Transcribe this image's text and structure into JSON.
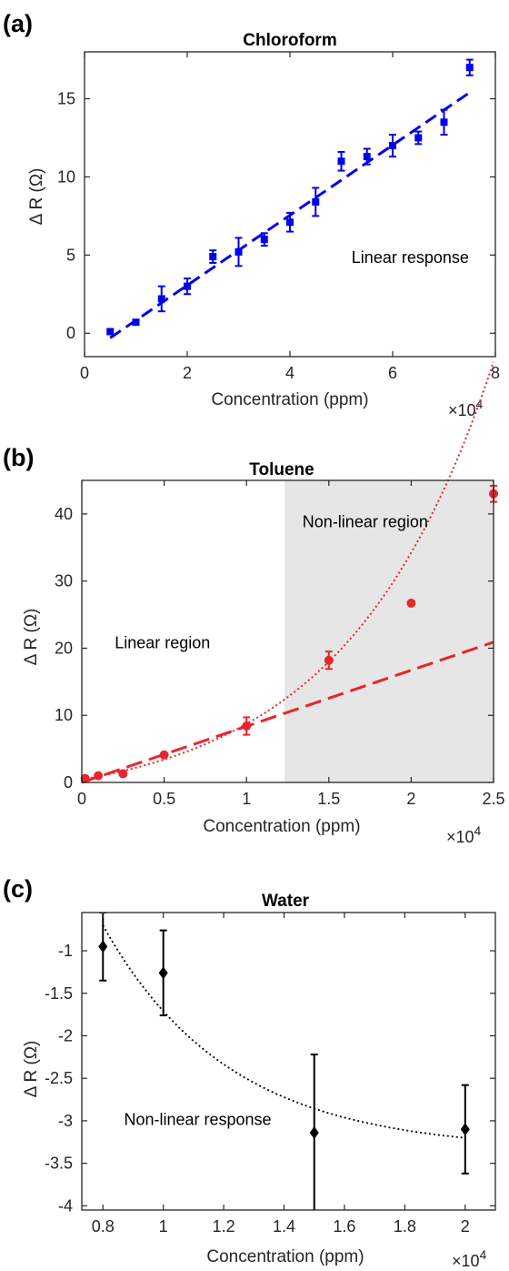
{
  "chart_data": [
    {
      "panel_label": "(a)",
      "type": "scatter",
      "title": "Chloroform",
      "xlabel": "Concentration (ppm)",
      "ylabel": "Δ R (Ω)",
      "x_multiplier": "×10",
      "x_multiplier_exp": "4",
      "xlim": [
        0,
        8
      ],
      "ylim": [
        -1.5,
        18
      ],
      "xticks": [
        0,
        2,
        4,
        6,
        8
      ],
      "xtick_labels": [
        "0",
        "2",
        "4",
        "6",
        "8"
      ],
      "yticks": [
        0,
        5,
        10,
        15
      ],
      "ytick_labels": [
        "0",
        "5",
        "10",
        "15"
      ],
      "color": "#0000ee",
      "marker": "square",
      "points": [
        {
          "x": 0.5,
          "y": 0.1,
          "err": 0
        },
        {
          "x": 1.0,
          "y": 0.7,
          "err": 0
        },
        {
          "x": 1.5,
          "y": 2.2,
          "err": 0.8
        },
        {
          "x": 2.0,
          "y": 3.0,
          "err": 0.5
        },
        {
          "x": 2.5,
          "y": 4.9,
          "err": 0.4
        },
        {
          "x": 3.0,
          "y": 5.2,
          "err": 0.9
        },
        {
          "x": 3.5,
          "y": 6.0,
          "err": 0.4
        },
        {
          "x": 4.0,
          "y": 7.1,
          "err": 0.6
        },
        {
          "x": 4.5,
          "y": 8.4,
          "err": 0.9
        },
        {
          "x": 5.0,
          "y": 11.0,
          "err": 0.6
        },
        {
          "x": 5.5,
          "y": 11.3,
          "err": 0.5
        },
        {
          "x": 6.0,
          "y": 12.0,
          "err": 0.7
        },
        {
          "x": 6.5,
          "y": 12.5,
          "err": 0.4
        },
        {
          "x": 7.0,
          "y": 13.5,
          "err": 0.8
        },
        {
          "x": 7.5,
          "y": 17.0,
          "err": 0.5
        }
      ],
      "fit": {
        "kind": "linear",
        "style": "dashed",
        "x": [
          0.5,
          7.5
        ],
        "y": [
          -0.3,
          15.4
        ]
      },
      "annotation": {
        "text": "Linear response",
        "x": 5.2,
        "y": 4.5
      }
    },
    {
      "panel_label": "(b)",
      "type": "scatter",
      "title": "Toluene",
      "xlabel": "Concentration (ppm)",
      "ylabel": "Δ R (Ω)",
      "x_multiplier": "×10",
      "x_multiplier_exp": "4",
      "xlim": [
        0,
        2.5
      ],
      "ylim": [
        0,
        45
      ],
      "xticks": [
        0,
        0.5,
        1,
        1.5,
        2,
        2.5
      ],
      "xtick_labels": [
        "0",
        "0.5",
        "1",
        "1.5",
        "2",
        "2.5"
      ],
      "yticks": [
        0,
        10,
        20,
        30,
        40
      ],
      "ytick_labels": [
        "0",
        "10",
        "20",
        "30",
        "40"
      ],
      "color": "#e8252b",
      "marker": "circle",
      "shaded_region": {
        "x": [
          1.23,
          2.5
        ],
        "color": "#e6e6e6",
        "label": "Non-linear region"
      },
      "points": [
        {
          "x": 0.02,
          "y": 0.6,
          "err": 0
        },
        {
          "x": 0.1,
          "y": 1.0,
          "err": 0
        },
        {
          "x": 0.25,
          "y": 1.3,
          "err": 0
        },
        {
          "x": 0.5,
          "y": 4.1,
          "err": 0
        },
        {
          "x": 1.0,
          "y": 8.4,
          "err": 1.3
        },
        {
          "x": 1.5,
          "y": 18.2,
          "err": 1.3
        },
        {
          "x": 2.0,
          "y": 26.7,
          "err": 0
        },
        {
          "x": 2.5,
          "y": 43.0,
          "err": 1.2
        }
      ],
      "fit_linear": {
        "style": "dashed",
        "x": [
          0,
          2.5
        ],
        "y": [
          0.0,
          20.9
        ]
      },
      "fit_nonlinear": {
        "style": "dotted",
        "kind": "exponential",
        "a": 2.6,
        "b": 1.12
      },
      "annotations": [
        {
          "text": "Linear region",
          "x": 0.2,
          "y": 20
        },
        {
          "text": "Non-linear region",
          "x": 1.34,
          "y": 38
        }
      ]
    },
    {
      "panel_label": "(c)",
      "type": "scatter",
      "title": "Water",
      "xlabel": "Concentration (ppm)",
      "ylabel": "Δ R (Ω)",
      "x_multiplier": "×10",
      "x_multiplier_exp": "4",
      "xlim": [
        0.73,
        2.1
      ],
      "ylim": [
        -4.05,
        -0.55
      ],
      "xticks": [
        0.8,
        1.0,
        1.2,
        1.4,
        1.6,
        1.8,
        2.0
      ],
      "xtick_labels": [
        "0.8",
        "1",
        "1.2",
        "1.4",
        "1.6",
        "1.8",
        "2"
      ],
      "yticks": [
        -1,
        -1.5,
        -2,
        -2.5,
        -3,
        -3.5,
        -4
      ],
      "ytick_labels": [
        "-1",
        "-1.5",
        "-2",
        "-2.5",
        "-3",
        "-3.5",
        "-4"
      ],
      "color": "#000000",
      "marker": "diamond",
      "points": [
        {
          "x": 0.8,
          "y": -0.95,
          "err": 0.4
        },
        {
          "x": 1.0,
          "y": -1.26,
          "err": 0.5
        },
        {
          "x": 1.5,
          "y": -3.14,
          "err": 0.92
        },
        {
          "x": 2.0,
          "y": -3.1,
          "err": 0.52
        }
      ],
      "fit": {
        "kind": "exponential-decay",
        "style": "dotted",
        "c": -3.35,
        "a": 2.65,
        "k": 2.4,
        "x0": 0.8
      },
      "annotation": {
        "text": "Non-linear response",
        "x": 0.87,
        "y": -3.05
      }
    }
  ]
}
